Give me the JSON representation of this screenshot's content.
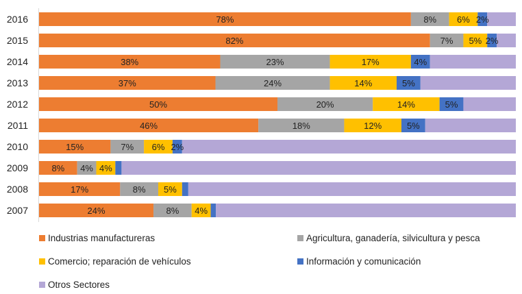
{
  "chart_data": {
    "type": "bar",
    "orientation": "horizontal",
    "stacked": true,
    "normalized": true,
    "categories": [
      "2016",
      "2015",
      "2014",
      "2013",
      "2012",
      "2011",
      "2010",
      "2009",
      "2008",
      "2007"
    ],
    "series": [
      {
        "name": "Industrias manufactureras",
        "color": "#ED7D31",
        "values": [
          78,
          82,
          38,
          37,
          50,
          46,
          15,
          8,
          17,
          24
        ],
        "labels": [
          "78%",
          "82%",
          "38%",
          "37%",
          "50%",
          "46%",
          "15%",
          "8%",
          "17%",
          "24%"
        ]
      },
      {
        "name": "Agricultura, ganadería,  silvicultura y pesca",
        "color": "#A5A5A5",
        "values": [
          8,
          7,
          23,
          24,
          20,
          18,
          7,
          4,
          8,
          8
        ],
        "labels": [
          "8%",
          "7%",
          "23%",
          "24%",
          "20%",
          "18%",
          "7%",
          "4%",
          "8%",
          "8%"
        ]
      },
      {
        "name": "Comercio; reparación de vehículos",
        "color": "#FFC000",
        "values": [
          6,
          5,
          17,
          14,
          14,
          12,
          6,
          4,
          5,
          4
        ],
        "labels": [
          "6%",
          "5%",
          "17%",
          "14%",
          "14%",
          "12%",
          "6%",
          "4%",
          "5%",
          "4%"
        ]
      },
      {
        "name": "Información y comunicación",
        "color": "#4472C4",
        "values": [
          2,
          2,
          4,
          5,
          5,
          5,
          2,
          1.3,
          1.3,
          1.1
        ],
        "labels": [
          "2%",
          "2%",
          "4%",
          "5%",
          "5%",
          "5%",
          "2%",
          "",
          "",
          ""
        ]
      },
      {
        "name": "Otros Sectores",
        "color": "#B4A7D6",
        "values": [
          6,
          4,
          18,
          20,
          11,
          19,
          70,
          82.7,
          68.7,
          62.9
        ],
        "labels": [
          "",
          "",
          "",
          "",
          "",
          "",
          "",
          "",
          "",
          ""
        ]
      }
    ],
    "xlim": [
      0,
      100
    ],
    "grid": false,
    "legend_position": "bottom"
  }
}
